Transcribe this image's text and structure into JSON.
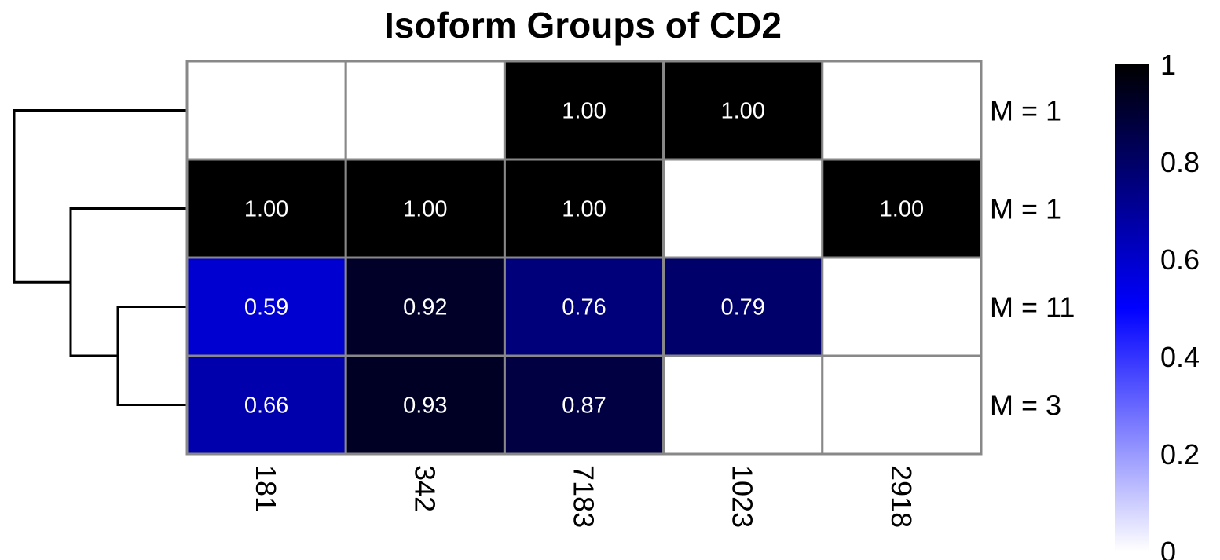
{
  "chart_data": {
    "type": "heatmap",
    "title": "Isoform Groups of CD2",
    "columns": [
      "181",
      "342",
      "7183",
      "1023",
      "2918"
    ],
    "rows": [
      "M = 1",
      "M = 1",
      "M = 11",
      "M = 3"
    ],
    "values": [
      [
        0,
        0,
        1.0,
        1.0,
        0
      ],
      [
        1.0,
        1.0,
        1.0,
        0,
        1.0
      ],
      [
        0.59,
        0.92,
        0.76,
        0.79,
        0
      ],
      [
        0.66,
        0.93,
        0.87,
        0,
        0
      ]
    ],
    "cell_labels": [
      [
        "",
        "",
        "1.00",
        "1.00",
        ""
      ],
      [
        "1.00",
        "1.00",
        "1.00",
        "",
        "1.00"
      ],
      [
        "0.59",
        "0.92",
        "0.76",
        "0.79",
        ""
      ],
      [
        "0.66",
        "0.93",
        "0.87",
        "",
        ""
      ]
    ],
    "legend": {
      "range": [
        0,
        1
      ],
      "ticks": [
        "0",
        "0.2",
        "0.4",
        "0.6",
        "0.8",
        "1"
      ],
      "placement": "right",
      "colors": [
        "#ffffff",
        "#0000ff",
        "#000000"
      ]
    },
    "dendrogram": {
      "side": "left",
      "merge_order": [
        [
          3,
          4
        ],
        [
          2,
          34
        ],
        [
          1,
          234
        ]
      ]
    },
    "grid_color": "#888888"
  }
}
